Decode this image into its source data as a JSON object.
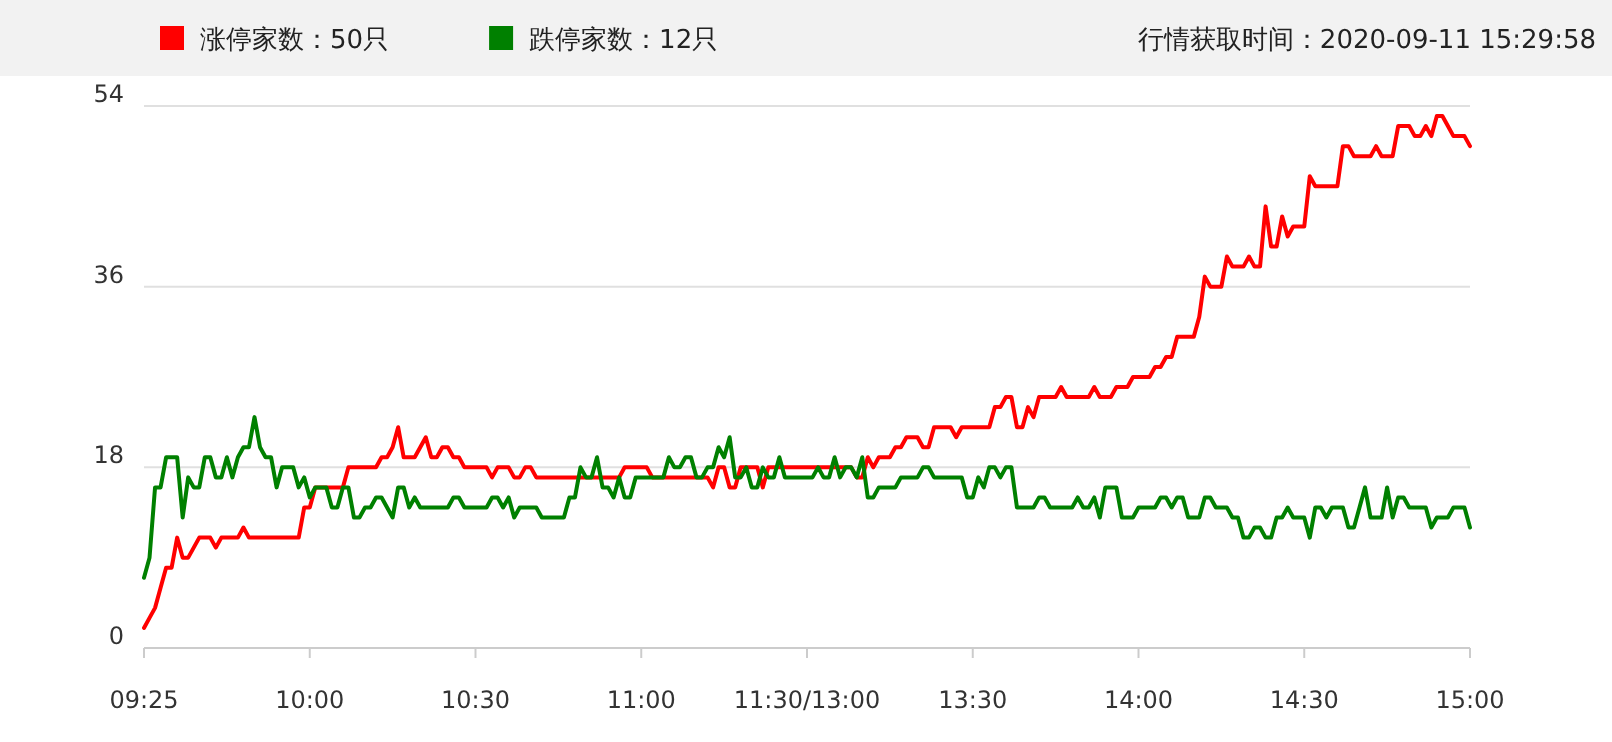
{
  "chart_data": {
    "type": "line",
    "legend": "top left",
    "grid": "y",
    "annotations": [
      "行情获取时间：2020-09-11 15:29:58"
    ],
    "ylim": [
      0,
      54
    ],
    "yticks": [
      0,
      18,
      36,
      54
    ],
    "categories": [
      "09:25",
      null,
      null,
      null,
      null,
      null,
      null,
      null,
      null,
      null,
      null,
      null,
      null,
      null,
      null,
      null,
      null,
      null,
      null,
      null,
      null,
      null,
      null,
      null,
      null,
      null,
      null,
      null,
      null,
      null,
      "10:00",
      null,
      null,
      null,
      null,
      null,
      null,
      null,
      null,
      null,
      null,
      null,
      null,
      null,
      null,
      null,
      null,
      null,
      null,
      null,
      null,
      null,
      null,
      null,
      null,
      null,
      null,
      null,
      null,
      null,
      "10:30",
      null,
      null,
      null,
      null,
      null,
      null,
      null,
      null,
      null,
      null,
      null,
      null,
      null,
      null,
      null,
      null,
      null,
      null,
      null,
      null,
      null,
      null,
      null,
      null,
      null,
      null,
      null,
      null,
      null,
      "11:00",
      null,
      null,
      null,
      null,
      null,
      null,
      null,
      null,
      null,
      null,
      null,
      null,
      null,
      null,
      null,
      null,
      null,
      null,
      null,
      null,
      null,
      null,
      null,
      null,
      null,
      null,
      null,
      null,
      null,
      "11:30/13:00",
      null,
      null,
      null,
      null,
      null,
      null,
      null,
      null,
      null,
      null,
      null,
      null,
      null,
      null,
      null,
      null,
      null,
      null,
      null,
      null,
      null,
      null,
      null,
      null,
      null,
      null,
      null,
      null,
      null,
      "13:30",
      null,
      null,
      null,
      null,
      null,
      null,
      null,
      null,
      null,
      null,
      null,
      null,
      null,
      null,
      null,
      null,
      null,
      null,
      null,
      null,
      null,
      null,
      null,
      null,
      null,
      null,
      null,
      null,
      null,
      "14:00",
      null,
      null,
      null,
      null,
      null,
      null,
      null,
      null,
      null,
      null,
      null,
      null,
      null,
      null,
      null,
      null,
      null,
      null,
      null,
      null,
      null,
      null,
      null,
      null,
      null,
      null,
      null,
      null,
      null,
      "14:30",
      null,
      null,
      null,
      null,
      null,
      null,
      null,
      null,
      null,
      null,
      null,
      null,
      null,
      null,
      null,
      null,
      null,
      null,
      null,
      null,
      null,
      null,
      null,
      null,
      null,
      null,
      null,
      null,
      null,
      "15:00"
    ],
    "series": [
      {
        "name": "涨停家数：50只",
        "color": "#ff0000",
        "values": [
          2,
          3,
          4,
          6,
          8,
          8,
          11,
          9,
          9,
          10,
          11,
          11,
          11,
          10,
          11,
          11,
          11,
          11,
          12,
          11,
          11,
          11,
          11,
          11,
          11,
          11,
          11,
          11,
          11,
          14,
          14,
          16,
          16,
          16,
          16,
          16,
          16,
          18,
          18,
          18,
          18,
          18,
          18,
          19,
          19,
          20,
          22,
          19,
          19,
          19,
          20,
          21,
          19,
          19,
          20,
          20,
          19,
          19,
          18,
          18,
          18,
          18,
          18,
          17,
          18,
          18,
          18,
          17,
          17,
          18,
          18,
          17,
          17,
          17,
          17,
          17,
          17,
          17,
          17,
          17,
          17,
          17,
          17,
          17,
          17,
          17,
          17,
          18,
          18,
          18,
          18,
          18,
          17,
          17,
          17,
          17,
          17,
          17,
          17,
          17,
          17,
          17,
          17,
          16,
          18,
          18,
          16,
          16,
          18,
          18,
          18,
          18,
          16,
          18,
          18,
          18,
          18,
          18,
          18,
          18,
          18,
          18,
          18,
          18,
          18,
          18,
          18,
          18,
          18,
          17,
          17,
          19,
          18,
          19,
          19,
          19,
          20,
          20,
          21,
          21,
          21,
          20,
          20,
          22,
          22,
          22,
          22,
          21,
          22,
          22,
          22,
          22,
          22,
          22,
          24,
          24,
          25,
          25,
          22,
          22,
          24,
          23,
          25,
          25,
          25,
          25,
          26,
          25,
          25,
          25,
          25,
          25,
          26,
          25,
          25,
          25,
          26,
          26,
          26,
          27,
          27,
          27,
          27,
          28,
          28,
          29,
          29,
          31,
          31,
          31,
          31,
          33,
          37,
          36,
          36,
          36,
          39,
          38,
          38,
          38,
          39,
          38,
          38,
          44,
          40,
          40,
          43,
          41,
          42,
          42,
          42,
          47,
          46,
          46,
          46,
          46,
          46,
          50,
          50,
          49,
          49,
          49,
          49,
          50,
          49,
          49,
          49,
          52,
          52,
          52,
          51,
          51,
          52,
          51,
          53,
          53,
          52,
          51,
          51,
          51,
          50
        ]
      },
      {
        "name": "跌停家数：12只",
        "color": "#008000",
        "values": [
          7,
          9,
          16,
          16,
          19,
          19,
          19,
          13,
          17,
          16,
          16,
          19,
          19,
          17,
          17,
          19,
          17,
          19,
          20,
          20,
          23,
          20,
          19,
          19,
          16,
          18,
          18,
          18,
          16,
          17,
          15,
          16,
          16,
          16,
          14,
          14,
          16,
          16,
          13,
          13,
          14,
          14,
          15,
          15,
          14,
          13,
          16,
          16,
          14,
          15,
          14,
          14,
          14,
          14,
          14,
          14,
          15,
          15,
          14,
          14,
          14,
          14,
          14,
          15,
          15,
          14,
          15,
          13,
          14,
          14,
          14,
          14,
          13,
          13,
          13,
          13,
          13,
          15,
          15,
          18,
          17,
          17,
          19,
          16,
          16,
          15,
          17,
          15,
          15,
          17,
          17,
          17,
          17,
          17,
          17,
          19,
          18,
          18,
          19,
          19,
          17,
          17,
          18,
          18,
          20,
          19,
          21,
          17,
          17,
          18,
          16,
          16,
          18,
          17,
          17,
          19,
          17,
          17,
          17,
          17,
          17,
          17,
          18,
          17,
          17,
          19,
          17,
          18,
          18,
          17,
          19,
          15,
          15,
          16,
          16,
          16,
          16,
          17,
          17,
          17,
          17,
          18,
          18,
          17,
          17,
          17,
          17,
          17,
          17,
          15,
          15,
          17,
          16,
          18,
          18,
          17,
          18,
          18,
          14,
          14,
          14,
          14,
          15,
          15,
          14,
          14,
          14,
          14,
          14,
          15,
          14,
          14,
          15,
          13,
          16,
          16,
          16,
          13,
          13,
          13,
          14,
          14,
          14,
          14,
          15,
          15,
          14,
          15,
          15,
          13,
          13,
          13,
          15,
          15,
          14,
          14,
          14,
          13,
          13,
          11,
          11,
          12,
          12,
          11,
          11,
          13,
          13,
          14,
          13,
          13,
          13,
          11,
          14,
          14,
          13,
          14,
          14,
          14,
          12,
          12,
          14,
          16,
          13,
          13,
          13,
          16,
          13,
          15,
          15,
          14,
          14,
          14,
          14,
          12,
          13,
          13,
          13,
          14,
          14,
          14,
          12
        ]
      }
    ]
  }
}
